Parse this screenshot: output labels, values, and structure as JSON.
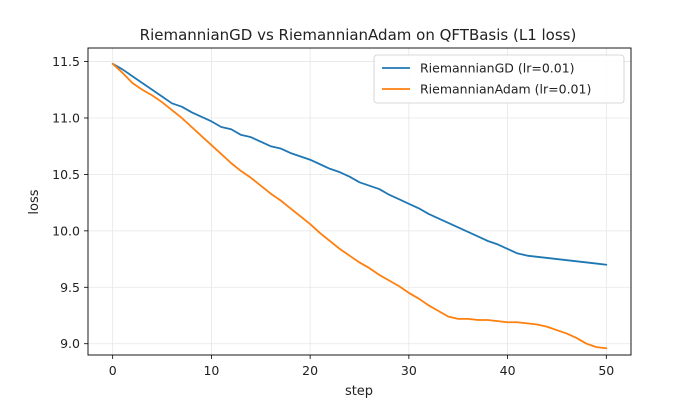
{
  "chart_data": {
    "type": "line",
    "title": "RiemannianGD vs RiemannianAdam on QFTBasis (L1 loss)",
    "xlabel": "step",
    "ylabel": "loss",
    "xlim": [
      -2.5,
      52.5
    ],
    "ylim": [
      8.9,
      11.62
    ],
    "xticks": [
      0,
      10,
      20,
      30,
      40,
      50
    ],
    "yticks": [
      9.0,
      9.5,
      10.0,
      10.5,
      11.0,
      11.5
    ],
    "grid": true,
    "legend_position": "top-right",
    "x": [
      0,
      1,
      2,
      3,
      4,
      5,
      6,
      7,
      8,
      9,
      10,
      11,
      12,
      13,
      14,
      15,
      16,
      17,
      18,
      19,
      20,
      21,
      22,
      23,
      24,
      25,
      26,
      27,
      28,
      29,
      30,
      31,
      32,
      33,
      34,
      35,
      36,
      37,
      38,
      39,
      40,
      41,
      42,
      43,
      44,
      45,
      46,
      47,
      48,
      49,
      50
    ],
    "series": [
      {
        "name": "RiemannianGD (lr=0.01)",
        "color": "#1f77b4",
        "values": [
          11.48,
          11.43,
          11.37,
          11.31,
          11.25,
          11.19,
          11.13,
          11.1,
          11.05,
          11.01,
          10.97,
          10.92,
          10.9,
          10.85,
          10.83,
          10.79,
          10.75,
          10.73,
          10.69,
          10.66,
          10.63,
          10.59,
          10.55,
          10.52,
          10.48,
          10.43,
          10.4,
          10.37,
          10.32,
          10.28,
          10.24,
          10.2,
          10.15,
          10.11,
          10.07,
          10.03,
          9.99,
          9.95,
          9.91,
          9.88,
          9.84,
          9.8,
          9.78,
          9.77,
          9.76,
          9.75,
          9.74,
          9.73,
          9.72,
          9.71,
          9.7
        ]
      },
      {
        "name": "RiemannianAdam (lr=0.01)",
        "color": "#ff7f0e",
        "values": [
          11.48,
          11.4,
          11.31,
          11.25,
          11.2,
          11.14,
          11.07,
          11.0,
          10.92,
          10.84,
          10.76,
          10.68,
          10.6,
          10.53,
          10.47,
          10.4,
          10.33,
          10.27,
          10.2,
          10.13,
          10.06,
          9.98,
          9.91,
          9.84,
          9.78,
          9.72,
          9.67,
          9.61,
          9.56,
          9.51,
          9.45,
          9.4,
          9.34,
          9.29,
          9.24,
          9.22,
          9.22,
          9.21,
          9.21,
          9.2,
          9.19,
          9.19,
          9.18,
          9.17,
          9.15,
          9.12,
          9.09,
          9.05,
          9.0,
          8.97,
          8.96
        ]
      }
    ]
  }
}
